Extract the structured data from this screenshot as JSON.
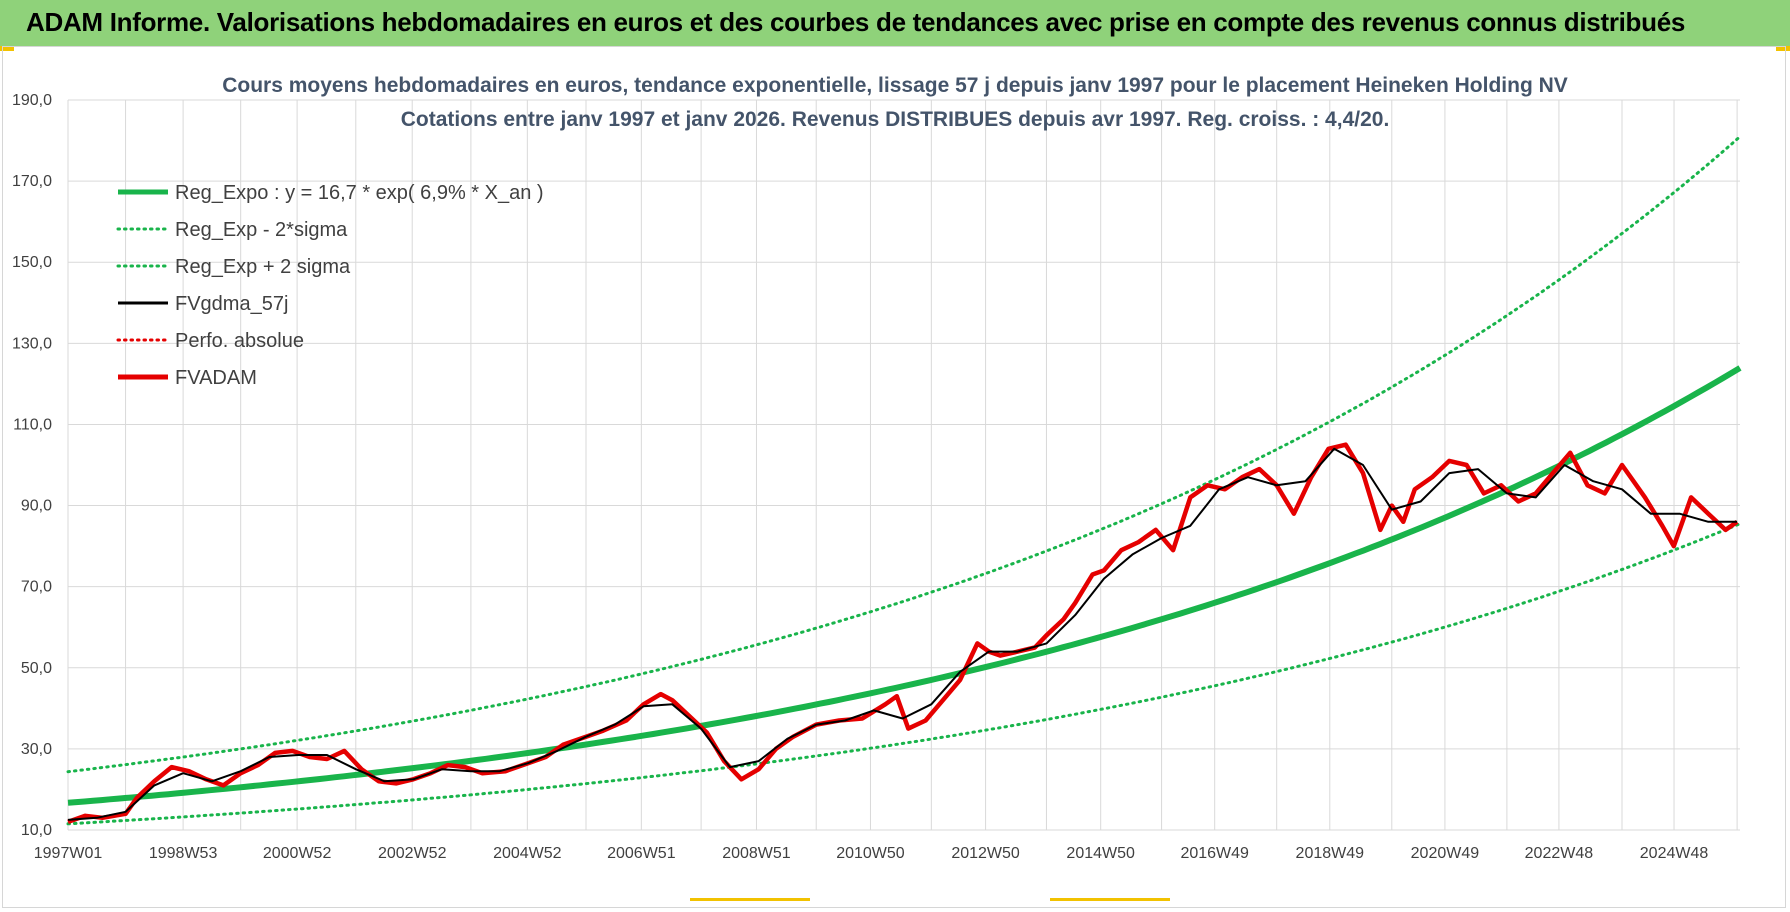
{
  "banner": {
    "title": "ADAM Informe. Valorisations hebdomadaires en euros et des courbes de tendances avec prise en compte des revenus connus distribués"
  },
  "colors": {
    "banner_bg": "#8fd27a",
    "reg_expo": "#19b44b",
    "fv_gdma": "#000000",
    "fv_adam": "#e50000",
    "perfo": "#e50000",
    "grid": "#d9d9d9"
  },
  "chart_data": {
    "type": "line",
    "title_lines": [
      "Cours moyens hebdomadaires en euros, tendance exponentielle, lissage 57 j depuis janv 1997 pour le placement Heineken Holding NV",
      "Cotations entre janv 1997 et janv 2026. Revenus DISTRIBUES depuis avr 1997. Reg. croiss. : 4,4/20."
    ],
    "xlabel": "",
    "ylabel": "",
    "x_ticks": [
      "1997W01",
      "1998W53",
      "2000W52",
      "2002W52",
      "2004W52",
      "2006W51",
      "2008W51",
      "2010W50",
      "2012W50",
      "2014W50",
      "2016W49",
      "2018W49",
      "2020W49",
      "2022W48",
      "2024W48"
    ],
    "xlim": [
      1997.0,
      2026.05
    ],
    "y_ticks": [
      "10,0",
      "30,0",
      "50,0",
      "70,0",
      "90,0",
      "110,0",
      "130,0",
      "150,0",
      "170,0",
      "190,0"
    ],
    "ylim": [
      10,
      190
    ],
    "grid": true,
    "legend_position": "top-left",
    "legend": [
      {
        "label": "Reg_Expo : y = 16,7 * exp( 6,9% *  X_an )",
        "style": "thick-solid",
        "color": "#19b44b"
      },
      {
        "label": "Reg_Exp - 2*sigma",
        "style": "dotted",
        "color": "#19b44b"
      },
      {
        "label": "Reg_Exp + 2 sigma",
        "style": "dotted",
        "color": "#19b44b"
      },
      {
        "label": "FVgdma_57j",
        "style": "solid",
        "color": "#000000"
      },
      {
        "label": "Perfo. absolue",
        "style": "dotted",
        "color": "#e50000"
      },
      {
        "label": "FVADAM",
        "style": "thick-solid",
        "color": "#e50000"
      }
    ],
    "regression": {
      "a": 16.7,
      "rate": 0.069,
      "start_year": 1997.0,
      "lower_factor": 0.69,
      "upper_factor": 1.46
    },
    "series": [
      {
        "name": "FVADAM",
        "x": [
          1997.0,
          1997.3,
          1997.6,
          1998.0,
          1998.2,
          1998.5,
          1998.8,
          1999.1,
          1999.4,
          1999.7,
          2000.0,
          2000.3,
          2000.6,
          2000.9,
          2001.2,
          2001.5,
          2001.8,
          2002.1,
          2002.4,
          2002.7,
          2003.0,
          2003.3,
          2003.6,
          2003.9,
          2004.2,
          2004.6,
          2005.0,
          2005.3,
          2005.6,
          2006.0,
          2006.3,
          2006.7,
          2007.0,
          2007.3,
          2007.5,
          2007.8,
          2008.1,
          2008.4,
          2008.7,
          2009.0,
          2009.3,
          2009.6,
          2010.0,
          2010.4,
          2010.8,
          2011.2,
          2011.4,
          2011.6,
          2011.9,
          2012.2,
          2012.5,
          2012.8,
          2013.0,
          2013.2,
          2013.5,
          2013.8,
          2014.0,
          2014.3,
          2014.5,
          2014.8,
          2015.0,
          2015.3,
          2015.6,
          2015.9,
          2016.2,
          2016.5,
          2016.8,
          2017.1,
          2017.4,
          2017.7,
          2018.0,
          2018.3,
          2018.6,
          2018.9,
          2019.2,
          2019.5,
          2019.8,
          2020.0,
          2020.2,
          2020.4,
          2020.7,
          2021.0,
          2021.3,
          2021.6,
          2021.9,
          2022.2,
          2022.5,
          2022.8,
          2023.1,
          2023.4,
          2023.7,
          2024.0,
          2024.2,
          2024.4,
          2024.7,
          2024.9,
          2025.2,
          2025.5,
          2025.8,
          2026.0
        ],
        "y": [
          12.0,
          13.5,
          13.0,
          14.0,
          18.0,
          22.0,
          25.5,
          24.5,
          22.5,
          21.0,
          24.0,
          26.0,
          29.0,
          29.5,
          28.0,
          27.5,
          29.5,
          25.0,
          22.0,
          21.5,
          22.5,
          24.0,
          26.0,
          25.5,
          24.0,
          24.5,
          26.5,
          28.0,
          31.0,
          33.0,
          34.5,
          37.0,
          41.0,
          43.5,
          42.0,
          38.0,
          34.0,
          27.0,
          22.5,
          25.0,
          30.0,
          33.0,
          36.0,
          37.0,
          37.5,
          41.0,
          43.0,
          35.0,
          37.0,
          42.0,
          47.0,
          56.0,
          54.0,
          53.0,
          54.0,
          55.0,
          58.0,
          62.0,
          66.0,
          73.0,
          74.0,
          79.0,
          81.0,
          84.0,
          79.0,
          92.0,
          95.0,
          94.0,
          97.0,
          99.0,
          95.0,
          88.0,
          97.0,
          104.0,
          105.0,
          98.0,
          84.0,
          90.0,
          86.0,
          94.0,
          97.0,
          101.0,
          100.0,
          93.0,
          95.0,
          91.0,
          93.0,
          98.0,
          103.0,
          95.0,
          93.0,
          100.0,
          96.0,
          92.0,
          85.0,
          80.0,
          92.0,
          88.0,
          84.0,
          86.0
        ]
      },
      {
        "name": "FVgdma_57j",
        "x": [
          1997.0,
          1997.5,
          1998.0,
          1998.5,
          1999.0,
          1999.5,
          2000.0,
          2000.5,
          2001.0,
          2001.5,
          2002.0,
          2002.5,
          2003.0,
          2003.5,
          2004.0,
          2004.5,
          2005.0,
          2005.5,
          2006.0,
          2006.5,
          2007.0,
          2007.5,
          2008.0,
          2008.5,
          2009.0,
          2009.5,
          2010.0,
          2010.5,
          2011.0,
          2011.5,
          2012.0,
          2012.5,
          2013.0,
          2013.5,
          2014.0,
          2014.5,
          2015.0,
          2015.5,
          2016.0,
          2016.5,
          2017.0,
          2017.5,
          2018.0,
          2018.5,
          2019.0,
          2019.5,
          2020.0,
          2020.5,
          2021.0,
          2021.5,
          2022.0,
          2022.5,
          2023.0,
          2023.5,
          2024.0,
          2024.5,
          2025.0,
          2025.5,
          2026.0
        ],
        "y": [
          12.5,
          13.0,
          14.5,
          21.0,
          24.0,
          22.0,
          24.5,
          28.0,
          28.5,
          28.5,
          25.0,
          22.0,
          22.5,
          25.0,
          24.5,
          24.5,
          26.5,
          29.5,
          33.0,
          36.0,
          40.5,
          41.0,
          35.0,
          25.5,
          27.0,
          32.5,
          36.0,
          37.0,
          39.5,
          37.5,
          41.0,
          49.0,
          54.0,
          54.0,
          56.0,
          63.0,
          72.0,
          78.0,
          82.0,
          85.0,
          94.0,
          97.0,
          95.0,
          96.0,
          104.0,
          100.0,
          89.0,
          91.0,
          98.0,
          99.0,
          93.0,
          92.0,
          100.0,
          96.0,
          94.0,
          88.0,
          88.0,
          86.0,
          86.0
        ]
      },
      {
        "name": "Reg_Expo",
        "x": [
          1997.0,
          2026.05
        ],
        "y": [
          16.7,
          124.6
        ]
      }
    ]
  }
}
